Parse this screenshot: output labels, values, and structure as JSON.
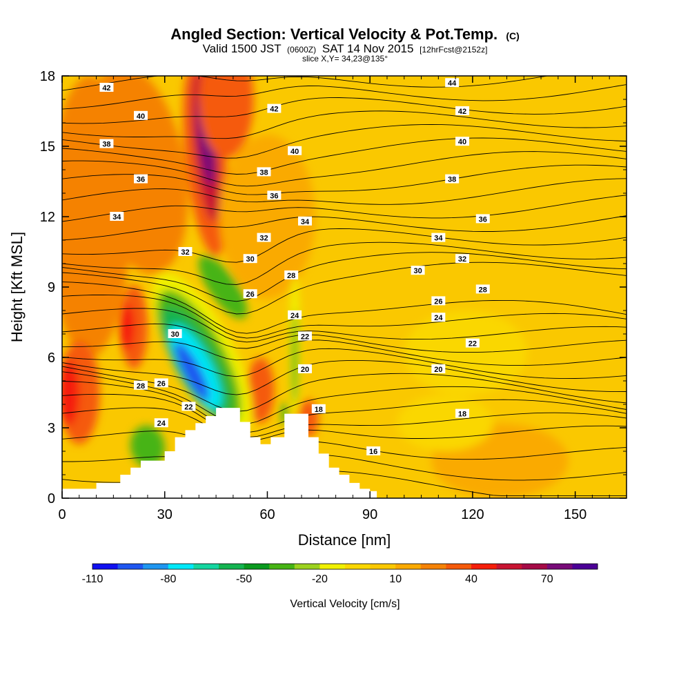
{
  "title": {
    "line1": "Angled Section: Vertical Velocity & Pot.Temp.",
    "line1_suffix": "(C)",
    "line2_a": "Valid 1500 JST",
    "line2_small_a": "(0600Z)",
    "line2_b": "SAT 14 Nov 2015",
    "line2_small_b": "[12hrFcst@2152z]",
    "line3": "slice X,Y= 34,23@135°"
  },
  "chart_data": {
    "type": "heatmap",
    "xlabel": "Distance [nm]",
    "ylabel": "Height [Kft MSL]",
    "xlim": [
      0,
      165
    ],
    "ylim": [
      0,
      18
    ],
    "x_ticks": [
      "0",
      "30",
      "60",
      "90",
      "120",
      "150"
    ],
    "y_ticks": [
      "0",
      "3",
      "6",
      "9",
      "12",
      "15",
      "18"
    ],
    "colorbar": {
      "label": "Vertical Velocity [cm/s]",
      "tick_labels": [
        "-110",
        "-80",
        "-50",
        "-20",
        "10",
        "40",
        "70"
      ],
      "levels": [
        -110,
        -100,
        -90,
        -80,
        -70,
        -60,
        -50,
        -40,
        -30,
        -20,
        -10,
        0,
        10,
        20,
        30,
        40,
        50,
        60,
        70,
        80
      ],
      "colors": [
        "#1010f0",
        "#1e56f0",
        "#1e96f0",
        "#00e8f8",
        "#14d6a0",
        "#14b450",
        "#0a9a1e",
        "#46b414",
        "#9cd21e",
        "#f0f000",
        "#fad700",
        "#fac800",
        "#faaa00",
        "#f58205",
        "#f55a0a",
        "#f51e0a",
        "#c81432",
        "#a50a46",
        "#780a78",
        "#4b0096"
      ]
    },
    "terrain": [
      [
        0,
        0.4
      ],
      [
        10,
        0.4
      ],
      [
        10,
        0.65
      ],
      [
        17,
        0.65
      ],
      [
        17,
        1.0
      ],
      [
        20,
        1.0
      ],
      [
        20,
        1.3
      ],
      [
        23,
        1.3
      ],
      [
        23,
        1.6
      ],
      [
        30,
        1.6
      ],
      [
        30,
        2.0
      ],
      [
        33,
        2.0
      ],
      [
        33,
        2.6
      ],
      [
        36,
        2.6
      ],
      [
        36,
        2.9
      ],
      [
        39,
        2.9
      ],
      [
        39,
        3.2
      ],
      [
        42,
        3.2
      ],
      [
        42,
        3.5
      ],
      [
        45,
        3.5
      ],
      [
        45,
        3.85
      ],
      [
        52,
        3.85
      ],
      [
        52,
        3.25
      ],
      [
        55,
        3.25
      ],
      [
        55,
        2.6
      ],
      [
        58,
        2.6
      ],
      [
        58,
        2.3
      ],
      [
        61,
        2.3
      ],
      [
        61,
        2.6
      ],
      [
        65,
        2.6
      ],
      [
        65,
        3.6
      ],
      [
        72,
        3.6
      ],
      [
        72,
        2.6
      ],
      [
        75,
        2.6
      ],
      [
        75,
        1.9
      ],
      [
        78,
        1.9
      ],
      [
        78,
        1.3
      ],
      [
        81,
        1.3
      ],
      [
        81,
        1.0
      ],
      [
        84,
        1.0
      ],
      [
        84,
        0.65
      ],
      [
        87,
        0.65
      ],
      [
        87,
        0.4
      ],
      [
        90,
        0.4
      ],
      [
        90,
        0.3
      ],
      [
        92,
        0.3
      ],
      [
        92,
        0
      ]
    ],
    "theta_isentropes_labeled": [
      {
        "value": "42",
        "x": 13,
        "y": 17.5
      },
      {
        "value": "40",
        "x": 23,
        "y": 16.3
      },
      {
        "value": "38",
        "x": 13,
        "y": 15.1
      },
      {
        "value": "36",
        "x": 23,
        "y": 13.6
      },
      {
        "value": "34",
        "x": 16,
        "y": 12.0
      },
      {
        "value": "32",
        "x": 36,
        "y": 10.5
      },
      {
        "value": "30",
        "x": 33,
        "y": 7.0
      },
      {
        "value": "28",
        "x": 23,
        "y": 4.8
      },
      {
        "value": "26",
        "x": 29,
        "y": 4.9
      },
      {
        "value": "24",
        "x": 29,
        "y": 3.2
      },
      {
        "value": "22",
        "x": 37,
        "y": 3.9
      },
      {
        "value": "42",
        "x": 62,
        "y": 16.6
      },
      {
        "value": "40",
        "x": 68,
        "y": 14.8
      },
      {
        "value": "38",
        "x": 59,
        "y": 13.9
      },
      {
        "value": "36",
        "x": 62,
        "y": 12.9
      },
      {
        "value": "34",
        "x": 71,
        "y": 11.8
      },
      {
        "value": "32",
        "x": 59,
        "y": 11.1
      },
      {
        "value": "30",
        "x": 55,
        "y": 10.2
      },
      {
        "value": "28",
        "x": 67,
        "y": 9.5
      },
      {
        "value": "26",
        "x": 55,
        "y": 8.7
      },
      {
        "value": "24",
        "x": 68,
        "y": 7.8
      },
      {
        "value": "22",
        "x": 71,
        "y": 6.9
      },
      {
        "value": "20",
        "x": 71,
        "y": 5.5
      },
      {
        "value": "18",
        "x": 75,
        "y": 3.8
      },
      {
        "value": "16",
        "x": 91,
        "y": 2.0
      },
      {
        "value": "44",
        "x": 114,
        "y": 17.7
      },
      {
        "value": "42",
        "x": 117,
        "y": 16.5
      },
      {
        "value": "40",
        "x": 117,
        "y": 15.2
      },
      {
        "value": "38",
        "x": 114,
        "y": 13.6
      },
      {
        "value": "36",
        "x": 123,
        "y": 11.9
      },
      {
        "value": "34",
        "x": 110,
        "y": 11.1
      },
      {
        "value": "32",
        "x": 117,
        "y": 10.2
      },
      {
        "value": "30",
        "x": 104,
        "y": 9.7
      },
      {
        "value": "28",
        "x": 123,
        "y": 8.9
      },
      {
        "value": "26",
        "x": 110,
        "y": 8.4
      },
      {
        "value": "24",
        "x": 110,
        "y": 7.7
      },
      {
        "value": "22",
        "x": 120,
        "y": 6.6
      },
      {
        "value": "20",
        "x": 110,
        "y": 5.5
      },
      {
        "value": "18",
        "x": 117,
        "y": 3.6
      }
    ],
    "vertical_velocity_features": [
      {
        "feature": "strong updraft",
        "value": 75,
        "x": 42,
        "y": 15.5
      },
      {
        "feature": "updraft",
        "value": 40,
        "x": 2,
        "y": 4.5
      },
      {
        "feature": "updraft",
        "value": 40,
        "x": 19,
        "y": 7.5
      },
      {
        "feature": "downdraft",
        "value": -100,
        "x": 41,
        "y": 6.0
      },
      {
        "feature": "downdraft",
        "value": -40,
        "x": 68,
        "y": 6.5
      },
      {
        "feature": "background",
        "value": 5,
        "x": 130,
        "y": 8.0
      }
    ]
  }
}
